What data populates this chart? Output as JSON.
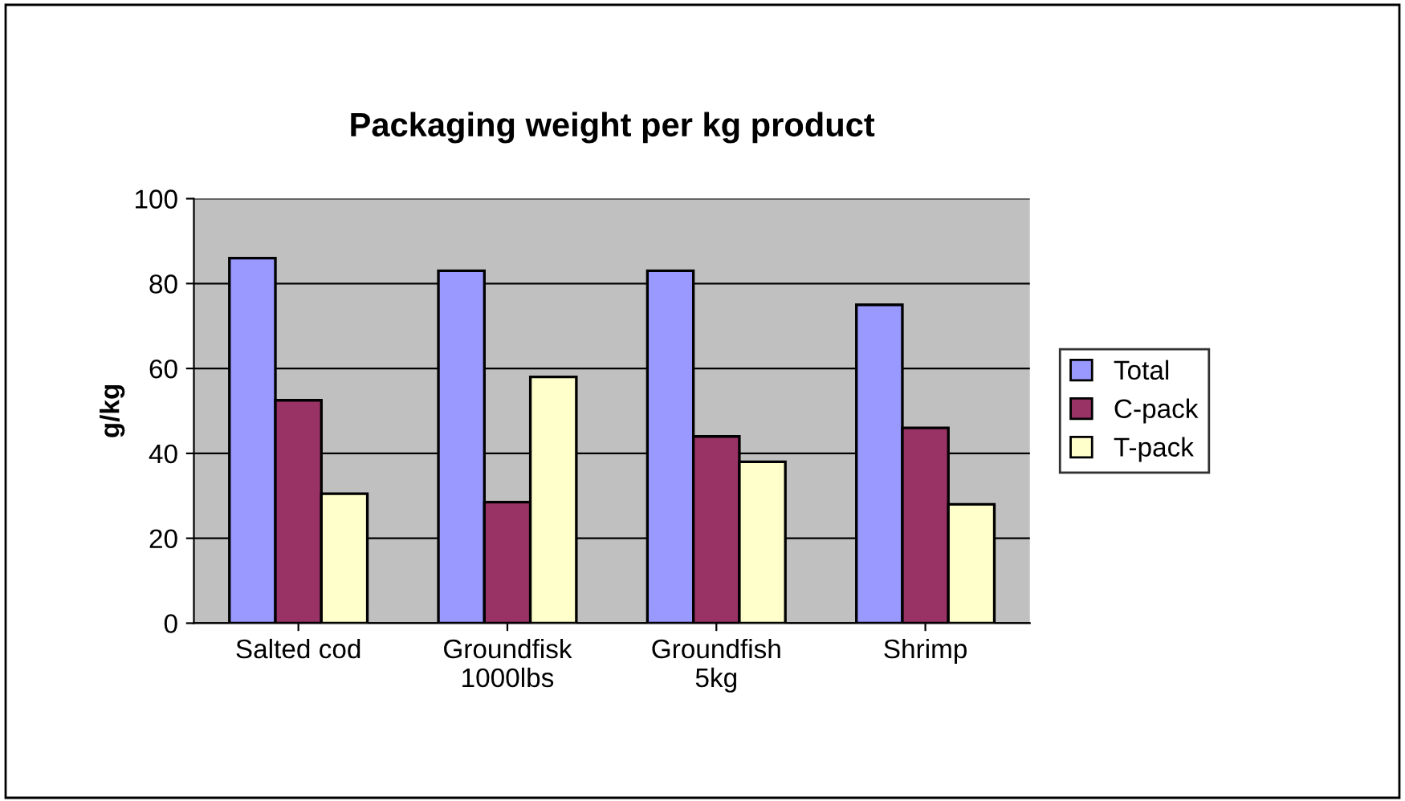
{
  "chart_data": {
    "type": "bar",
    "title": "Packaging weight per kg product",
    "ylabel": "g/kg",
    "categories": [
      "Salted cod",
      "Groundfisk\n1000lbs",
      "Groundfish\n5kg",
      "Shrimp"
    ],
    "series": [
      {
        "name": "Total",
        "color": "#9999ff",
        "values": [
          86,
          83,
          83,
          75
        ]
      },
      {
        "name": "C-pack",
        "color": "#993366",
        "values": [
          52.5,
          28.5,
          44,
          46
        ]
      },
      {
        "name": "T-pack",
        "color": "#ffffcc",
        "values": [
          30.5,
          58,
          38,
          28
        ]
      }
    ],
    "ylim": [
      0,
      100
    ],
    "yticks": [
      0,
      20,
      40,
      60,
      80,
      100
    ],
    "grid": "y",
    "legend": "right"
  }
}
